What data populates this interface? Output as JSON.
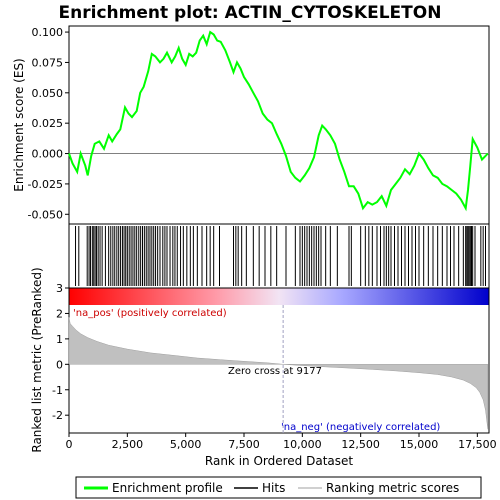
{
  "chart_data": {
    "type": "line",
    "title": "Enrichment plot: ACTIN_CYTOSKELETON",
    "es_panel": {
      "ylabel": "Enrichment score (ES)",
      "ylim": [
        -0.058,
        0.105
      ],
      "yticks": [
        -0.05,
        -0.025,
        0.0,
        0.025,
        0.05,
        0.075,
        0.1
      ],
      "ytick_labels": [
        "-0.050",
        "-0.025",
        "0.000",
        "0.025",
        "0.050",
        "0.075",
        "0.100"
      ],
      "series": [
        {
          "name": "Enrichment profile",
          "color": "#00ff00",
          "x": [
            0,
            150,
            350,
            500,
            700,
            800,
            950,
            1100,
            1300,
            1500,
            1700,
            1850,
            2050,
            2200,
            2400,
            2550,
            2700,
            2900,
            3050,
            3200,
            3400,
            3550,
            3700,
            3900,
            4050,
            4200,
            4400,
            4550,
            4700,
            4850,
            5000,
            5150,
            5300,
            5450,
            5600,
            5750,
            5900,
            6050,
            6200,
            6350,
            6500,
            6700,
            6900,
            7050,
            7200,
            7350,
            7500,
            7700,
            7900,
            8100,
            8300,
            8500,
            8700,
            8900,
            9100,
            9300,
            9500,
            9700,
            9900,
            10100,
            10300,
            10500,
            10700,
            10850,
            11000,
            11200,
            11400,
            11600,
            11800,
            12000,
            12200,
            12400,
            12600,
            12800,
            13000,
            13200,
            13400,
            13600,
            13800,
            14000,
            14200,
            14400,
            14600,
            14800,
            15000,
            15200,
            15400,
            15600,
            15800,
            16000,
            16200,
            16400,
            16600,
            16800,
            17000,
            17100,
            17200,
            17300,
            17500,
            17700,
            17850,
            17950
          ],
          "y": [
            0.0,
            -0.008,
            -0.015,
            0.0,
            -0.01,
            -0.018,
            -0.002,
            0.008,
            0.01,
            0.004,
            0.015,
            0.01,
            0.016,
            0.02,
            0.038,
            0.033,
            0.03,
            0.035,
            0.05,
            0.055,
            0.068,
            0.082,
            0.08,
            0.075,
            0.078,
            0.083,
            0.075,
            0.08,
            0.087,
            0.078,
            0.073,
            0.082,
            0.08,
            0.083,
            0.093,
            0.097,
            0.09,
            0.1,
            0.098,
            0.093,
            0.092,
            0.085,
            0.075,
            0.067,
            0.075,
            0.07,
            0.063,
            0.057,
            0.05,
            0.043,
            0.033,
            0.028,
            0.025,
            0.016,
            0.008,
            -0.002,
            -0.015,
            -0.02,
            -0.023,
            -0.018,
            -0.012,
            -0.003,
            0.015,
            0.023,
            0.02,
            0.015,
            0.008,
            -0.005,
            -0.015,
            -0.027,
            -0.027,
            -0.033,
            -0.045,
            -0.04,
            -0.042,
            -0.04,
            -0.035,
            -0.043,
            -0.03,
            -0.025,
            -0.02,
            -0.013,
            -0.017,
            -0.01,
            0.0,
            -0.005,
            -0.012,
            -0.018,
            -0.02,
            -0.025,
            -0.027,
            -0.03,
            -0.033,
            -0.038,
            -0.045,
            -0.03,
            -0.01,
            0.012,
            0.005,
            -0.005,
            -0.002,
            0.0
          ]
        }
      ]
    },
    "hits_panel": {
      "legend_name": "Hits",
      "hit_positions": [
        280,
        420,
        780,
        860,
        920,
        1000,
        1060,
        1120,
        1180,
        1250,
        1330,
        1420,
        1560,
        1700,
        1790,
        1880,
        1960,
        2050,
        2130,
        2210,
        2290,
        2360,
        2430,
        2500,
        2580,
        2660,
        2740,
        2820,
        2900,
        2990,
        3070,
        3150,
        3230,
        3310,
        3390,
        3470,
        3550,
        3630,
        3710,
        3800,
        3900,
        4020,
        4110,
        4200,
        4330,
        4450,
        4540,
        4640,
        4780,
        4900,
        5050,
        5200,
        5330,
        5500,
        5700,
        5900,
        6050,
        6200,
        6450,
        7050,
        7150,
        7250,
        7400,
        7600,
        7900,
        8150,
        8400,
        8650,
        8900,
        9300,
        9700,
        9900,
        10000,
        10100,
        10200,
        10300,
        10400,
        10500,
        10600,
        10700,
        10800,
        11000,
        11200,
        11500,
        12000,
        12100,
        12500,
        12700,
        12850,
        13000,
        13200,
        13350,
        13500,
        13600,
        13700,
        13800,
        13950,
        14100,
        14250,
        14400,
        14550,
        14700,
        14850,
        15000,
        15200,
        15400,
        15600,
        15800,
        16000,
        16200,
        16350,
        16500,
        16700,
        16900,
        17000,
        17050,
        17100,
        17150,
        17200,
        17250,
        17300,
        17400,
        17650,
        17750,
        17850
      ]
    },
    "metric_panel": {
      "ylabel": "Ranked list metric (PreRanked)",
      "legend_name": "Ranking metric scores",
      "ylim": [
        -2.7,
        3.0
      ],
      "yticks": [
        -2,
        -1,
        0,
        1,
        2,
        3
      ],
      "ytick_labels": [
        "-2",
        "-1",
        "0",
        "1",
        "2",
        "3"
      ],
      "x": [
        0,
        50,
        150,
        300,
        500,
        800,
        1200,
        1700,
        2500,
        3500,
        4500,
        5500,
        6500,
        7500,
        8500,
        9177,
        10000,
        11000,
        12000,
        13000,
        14000,
        15000,
        15800,
        16400,
        16900,
        17200,
        17450,
        17600,
        17750,
        17850,
        17950
      ],
      "values": [
        1.85,
        1.6,
        1.5,
        1.35,
        1.2,
        1.05,
        0.9,
        0.75,
        0.6,
        0.45,
        0.35,
        0.25,
        0.18,
        0.12,
        0.06,
        0.0,
        -0.05,
        -0.1,
        -0.15,
        -0.2,
        -0.26,
        -0.33,
        -0.4,
        -0.5,
        -0.62,
        -0.75,
        -0.92,
        -1.1,
        -1.4,
        -1.8,
        -2.55
      ],
      "annotations": {
        "pos_label": "'na_pos' (positively correlated)",
        "neg_label": "'na_neg' (negatively correlated)",
        "zero_cross_label": "Zero cross at 9177",
        "zero_cross_x": 9177
      }
    },
    "xaxis": {
      "label": "Rank in Ordered Dataset",
      "xlim": [
        0,
        18000
      ],
      "ticks": [
        0,
        2500,
        5000,
        7500,
        10000,
        12500,
        15000,
        17500
      ],
      "tick_labels": [
        "0",
        "2,500",
        "5,000",
        "7,500",
        "10,000",
        "12,500",
        "15,000",
        "17,500"
      ]
    },
    "gradient_bar": {
      "stops": [
        {
          "at": 0.0,
          "color": "#ff0000"
        },
        {
          "at": 0.35,
          "color": "#ff9aa8"
        },
        {
          "at": 0.5,
          "color": "#f2e4f4"
        },
        {
          "at": 0.65,
          "color": "#a8a8ff"
        },
        {
          "at": 1.0,
          "color": "#0000cc"
        }
      ]
    },
    "legend": {
      "items": [
        {
          "label": "Enrichment profile",
          "color": "#00ff00",
          "kind": "line"
        },
        {
          "label": "Hits",
          "color": "#000000",
          "kind": "line"
        },
        {
          "label": "Ranking metric scores",
          "color": "#c0c0c0",
          "kind": "line"
        }
      ]
    },
    "colors": {
      "es_line": "#00ff00",
      "hit": "#000000",
      "metric_fill": "#c0c0c0",
      "pos_label": "#cc0000",
      "neg_label": "#0000cc",
      "zero_line": "#a0a0c0"
    }
  }
}
